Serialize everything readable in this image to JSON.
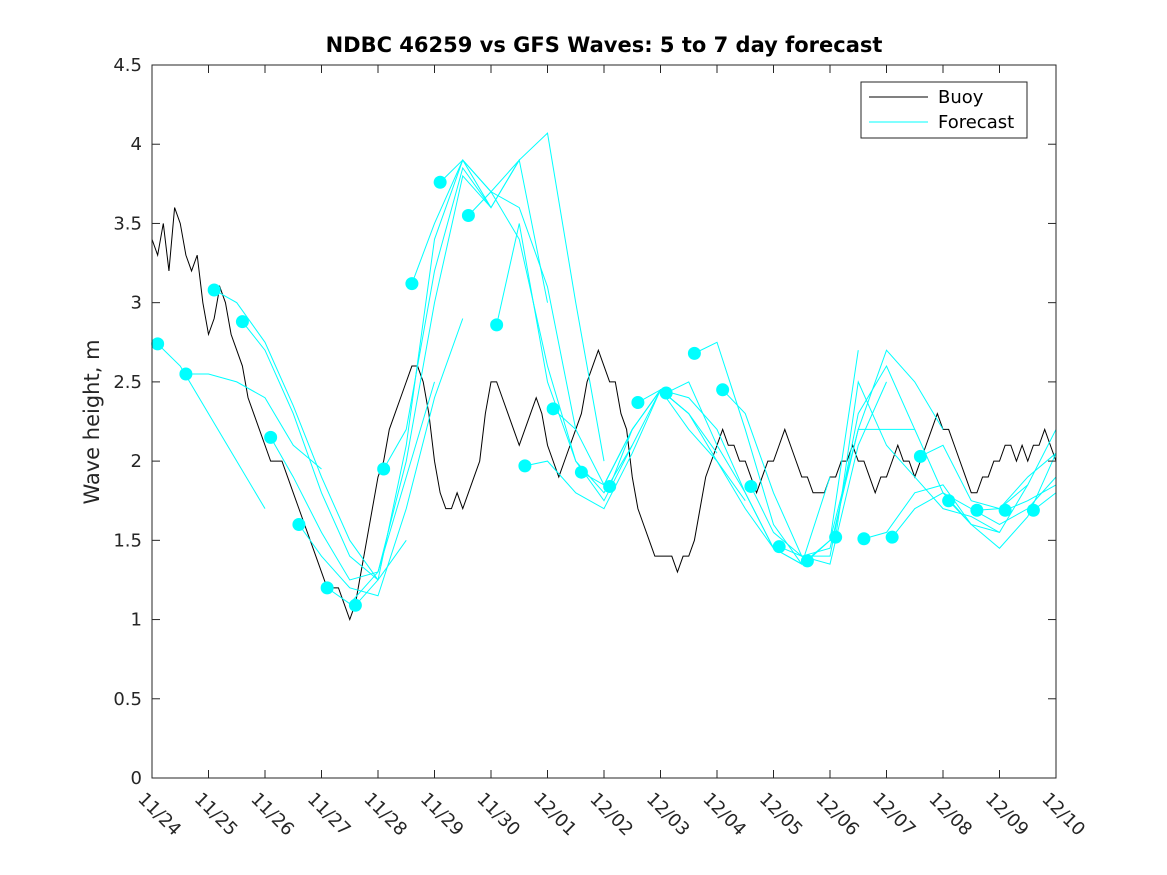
{
  "chart_data": {
    "type": "line",
    "title": "NDBC 46259 vs GFS Waves: 5 to 7 day forecast",
    "xlabel": "",
    "ylabel": "Wave height, m",
    "xlim": [
      0,
      16
    ],
    "ylim": [
      0,
      4.5
    ],
    "grid": false,
    "legend_position": "top-right",
    "x_ticks": [
      0,
      1,
      2,
      3,
      4,
      5,
      6,
      7,
      8,
      9,
      10,
      11,
      12,
      13,
      14,
      15,
      16
    ],
    "x_tick_labels": [
      "11/24",
      "11/25",
      "11/26",
      "11/27",
      "11/28",
      "11/29",
      "11/30",
      "12/01",
      "12/02",
      "12/03",
      "12/04",
      "12/05",
      "12/06",
      "12/07",
      "12/08",
      "12/09",
      "12/10"
    ],
    "y_ticks": [
      0,
      0.5,
      1,
      1.5,
      2,
      2.5,
      3,
      3.5,
      4,
      4.5
    ],
    "y_tick_labels": [
      "0",
      "0.5",
      "1",
      "1.5",
      "2",
      "2.5",
      "3",
      "3.5",
      "4",
      "4.5"
    ],
    "legend": [
      {
        "name": "Buoy",
        "color": "#000000"
      },
      {
        "name": "Forecast",
        "color": "#00FFFF"
      }
    ],
    "colors": {
      "buoy": "#000000",
      "forecast": "#00FFFF"
    },
    "series": [
      {
        "name": "Buoy",
        "x": [
          0,
          0.1,
          0.2,
          0.3,
          0.4,
          0.5,
          0.6,
          0.7,
          0.8,
          0.9,
          1.0,
          1.1,
          1.2,
          1.3,
          1.4,
          1.5,
          1.6,
          1.7,
          1.8,
          1.9,
          2.0,
          2.1,
          2.2,
          2.3,
          2.4,
          2.5,
          2.6,
          2.7,
          2.8,
          2.9,
          3.0,
          3.1,
          3.2,
          3.3,
          3.4,
          3.5,
          3.6,
          3.7,
          3.8,
          3.9,
          4.0,
          4.1,
          4.2,
          4.3,
          4.4,
          4.5,
          4.6,
          4.7,
          4.8,
          4.9,
          5.0,
          5.1,
          5.2,
          5.3,
          5.4,
          5.5,
          5.6,
          5.7,
          5.8,
          5.9,
          6.0,
          6.1,
          6.2,
          6.3,
          6.4,
          6.5,
          6.6,
          6.7,
          6.8,
          6.9,
          7.0,
          7.1,
          7.2,
          7.3,
          7.4,
          7.5,
          7.6,
          7.7,
          7.8,
          7.9,
          8.0,
          8.1,
          8.2,
          8.3,
          8.4,
          8.5,
          8.6,
          8.7,
          8.8,
          8.9,
          9.0,
          9.1,
          9.2,
          9.3,
          9.4,
          9.5,
          9.6,
          9.7,
          9.8,
          9.9,
          10.0,
          10.1,
          10.2,
          10.3,
          10.4,
          10.5,
          10.6,
          10.7,
          10.8,
          10.9,
          11.0,
          11.1,
          11.2,
          11.3,
          11.4,
          11.5,
          11.6,
          11.7,
          11.8,
          11.9,
          12.0,
          12.1,
          12.2,
          12.3,
          12.4,
          12.5,
          12.6,
          12.7,
          12.8,
          12.9,
          13.0,
          13.1,
          13.2,
          13.3,
          13.4,
          13.5,
          13.6,
          13.7,
          13.8,
          13.9,
          14.0,
          14.1,
          14.2,
          14.3,
          14.4,
          14.5,
          14.6,
          14.7,
          14.8,
          14.9,
          15.0,
          15.1,
          15.2,
          15.3,
          15.4,
          15.5,
          15.6,
          15.7,
          15.8,
          15.9,
          16.0
        ],
        "values": [
          3.4,
          3.3,
          3.5,
          3.2,
          3.6,
          3.5,
          3.3,
          3.2,
          3.3,
          3.0,
          2.8,
          2.9,
          3.1,
          3.0,
          2.8,
          2.7,
          2.6,
          2.4,
          2.3,
          2.2,
          2.1,
          2.0,
          2.0,
          2.0,
          1.9,
          1.8,
          1.7,
          1.6,
          1.5,
          1.4,
          1.3,
          1.2,
          1.2,
          1.2,
          1.1,
          1.0,
          1.1,
          1.3,
          1.5,
          1.7,
          1.9,
          2.0,
          2.2,
          2.3,
          2.4,
          2.5,
          2.6,
          2.6,
          2.5,
          2.3,
          2.0,
          1.8,
          1.7,
          1.7,
          1.8,
          1.7,
          1.8,
          1.9,
          2.0,
          2.3,
          2.5,
          2.5,
          2.4,
          2.3,
          2.2,
          2.1,
          2.2,
          2.3,
          2.4,
          2.3,
          2.1,
          2.0,
          1.9,
          2.0,
          2.1,
          2.2,
          2.3,
          2.5,
          2.6,
          2.7,
          2.6,
          2.5,
          2.5,
          2.3,
          2.2,
          1.9,
          1.7,
          1.6,
          1.5,
          1.4,
          1.4,
          1.4,
          1.4,
          1.3,
          1.4,
          1.4,
          1.5,
          1.7,
          1.9,
          2.0,
          2.1,
          2.2,
          2.1,
          2.1,
          2.0,
          2.0,
          1.9,
          1.8,
          1.9,
          2.0,
          2.0,
          2.1,
          2.2,
          2.1,
          2.0,
          1.9,
          1.9,
          1.8,
          1.8,
          1.8,
          1.9,
          1.9,
          2.0,
          2.0,
          2.1,
          2.0,
          2.0,
          1.9,
          1.8,
          1.9,
          1.9,
          2.0,
          2.1,
          2.0,
          2.0,
          1.9,
          2.0,
          2.1,
          2.2,
          2.3,
          2.2,
          2.2,
          2.1,
          2.0,
          1.9,
          1.8,
          1.8,
          1.9,
          1.9,
          2.0,
          2.0,
          2.1,
          2.1,
          2.0,
          2.1,
          2.0,
          2.1,
          2.1,
          2.2,
          2.1,
          2.0
        ]
      },
      {
        "name": "Forecast",
        "segments": [
          {
            "x": [
              0.1,
              0.5,
              1.0,
              1.5,
              2.0
            ],
            "values": [
              2.74,
              2.6,
              2.3,
              2.0,
              1.7
            ]
          },
          {
            "x": [
              0.6,
              1.0,
              1.5,
              2.0,
              2.5,
              3.0
            ],
            "values": [
              2.55,
              2.55,
              2.5,
              2.4,
              2.1,
              1.95
            ]
          },
          {
            "x": [
              1.1,
              1.5,
              2.0,
              2.5,
              3.0,
              3.5,
              4.0
            ],
            "values": [
              3.08,
              3.0,
              2.75,
              2.35,
              1.9,
              1.5,
              1.25
            ]
          },
          {
            "x": [
              1.6,
              2.0,
              2.5,
              3.0,
              3.5,
              4.0,
              4.5
            ],
            "values": [
              2.88,
              2.7,
              2.3,
              1.8,
              1.4,
              1.25,
              1.5
            ]
          },
          {
            "x": [
              2.1,
              2.5,
              3.0,
              3.5,
              4.0,
              4.5,
              5.0
            ],
            "values": [
              2.15,
              1.9,
              1.55,
              1.25,
              1.3,
              1.9,
              2.5
            ]
          },
          {
            "x": [
              2.6,
              3.0,
              3.5,
              4.0,
              4.5,
              5.0,
              5.5
            ],
            "values": [
              1.6,
              1.4,
              1.2,
              1.15,
              1.7,
              2.4,
              2.9
            ]
          },
          {
            "x": [
              3.1,
              3.5,
              4.0,
              4.5,
              5.0,
              5.5,
              6.0
            ],
            "values": [
              1.2,
              1.1,
              1.3,
              2.0,
              3.0,
              3.8,
              3.6
            ]
          },
          {
            "x": [
              3.6,
              4.0,
              4.5,
              5.0,
              5.5,
              6.0,
              6.5
            ],
            "values": [
              1.09,
              1.25,
              2.1,
              3.4,
              3.9,
              3.7,
              3.9
            ]
          },
          {
            "x": [
              4.1,
              4.5,
              5.0,
              5.5,
              6.0,
              6.5,
              7.0
            ],
            "values": [
              1.95,
              2.2,
              3.2,
              3.85,
              3.6,
              3.9,
              3.0
            ]
          },
          {
            "x": [
              4.6,
              5.0,
              5.5,
              6.0,
              6.5,
              7.0,
              7.5
            ],
            "values": [
              3.12,
              3.5,
              3.9,
              3.7,
              3.6,
              3.1,
              2.2
            ]
          },
          {
            "x": [
              5.1,
              5.5,
              6.0,
              6.5,
              7.0,
              7.5,
              8.0
            ],
            "values": [
              3.76,
              3.9,
              3.6,
              3.9,
              4.07,
              3.0,
              2.0
            ]
          },
          {
            "x": [
              5.6,
              6.0,
              6.5,
              7.0,
              7.5,
              8.0,
              8.5
            ],
            "values": [
              3.55,
              3.7,
              3.4,
              2.6,
              2.0,
              1.8,
              2.1
            ]
          },
          {
            "x": [
              6.1,
              6.5,
              7.0,
              7.5,
              8.0,
              8.5,
              9.0
            ],
            "values": [
              2.86,
              3.5,
              2.5,
              2.0,
              1.75,
              2.1,
              2.45
            ]
          },
          {
            "x": [
              6.6,
              7.0,
              7.5,
              8.0,
              8.5,
              9.0,
              9.5
            ],
            "values": [
              1.97,
              2.0,
              1.8,
              1.7,
              2.05,
              2.45,
              2.3
            ]
          },
          {
            "x": [
              7.1,
              7.5,
              8.0,
              8.5,
              9.0,
              9.5,
              10.0
            ],
            "values": [
              2.33,
              2.2,
              1.85,
              2.2,
              2.45,
              2.3,
              2.05
            ]
          },
          {
            "x": [
              7.6,
              8.0,
              8.5,
              9.0,
              9.5,
              10.0,
              10.5
            ],
            "values": [
              1.93,
              1.85,
              2.2,
              2.45,
              2.2,
              2.0,
              1.75
            ]
          },
          {
            "x": [
              8.1,
              8.5,
              9.0,
              9.5,
              10.0,
              10.5,
              11.0
            ],
            "values": [
              1.84,
              2.2,
              2.45,
              2.4,
              2.2,
              1.8,
              1.45
            ]
          },
          {
            "x": [
              8.6,
              9.0,
              9.5,
              10.0,
              10.5,
              11.0,
              11.5
            ],
            "values": [
              2.37,
              2.45,
              2.3,
              2.0,
              1.7,
              1.45,
              1.35
            ]
          },
          {
            "x": [
              9.1,
              9.5,
              10.0,
              10.5,
              11.0,
              11.5,
              12.0
            ],
            "values": [
              2.43,
              2.5,
              2.1,
              1.8,
              1.45,
              1.35,
              1.9
            ]
          },
          {
            "x": [
              9.6,
              10.0,
              10.5,
              11.0,
              11.5,
              12.0,
              12.5
            ],
            "values": [
              2.68,
              2.75,
              2.2,
              1.6,
              1.35,
              1.5,
              2.7
            ]
          },
          {
            "x": [
              10.1,
              10.5,
              11.0,
              11.5,
              12.0,
              12.5,
              13.0
            ],
            "values": [
              2.45,
              2.3,
              1.8,
              1.4,
              1.35,
              2.1,
              2.5
            ]
          },
          {
            "x": [
              10.6,
              11.0,
              11.5,
              12.0,
              12.5,
              13.0,
              13.5
            ],
            "values": [
              1.84,
              1.55,
              1.4,
              1.4,
              2.3,
              2.6,
              2.2
            ]
          },
          {
            "x": [
              11.1,
              11.5,
              12.0,
              12.5,
              13.0,
              13.5,
              14.0
            ],
            "values": [
              1.46,
              1.4,
              1.45,
              2.2,
              2.7,
              2.5,
              2.2
            ]
          },
          {
            "x": [
              11.6,
              12.0,
              12.5,
              13.0,
              13.5,
              14.0,
              14.5
            ],
            "values": [
              1.37,
              1.5,
              2.2,
              2.2,
              2.2,
              1.8,
              1.6
            ]
          },
          {
            "x": [
              12.1,
              12.5,
              13.0,
              13.5,
              14.0,
              14.5,
              15.0
            ],
            "values": [
              1.52,
              2.5,
              2.1,
              1.9,
              1.7,
              1.65,
              1.55
            ]
          },
          {
            "x": [
              12.6,
              13.0,
              13.5,
              14.0,
              14.5,
              15.0,
              15.5
            ],
            "values": [
              1.51,
              1.55,
              1.8,
              1.85,
              1.6,
              1.55,
              1.85
            ]
          },
          {
            "x": [
              13.1,
              13.5,
              14.0,
              14.5,
              15.0,
              15.5,
              16.0
            ],
            "values": [
              1.52,
              1.7,
              1.8,
              1.7,
              1.6,
              1.7,
              1.9
            ]
          },
          {
            "x": [
              13.6,
              14.0,
              14.5,
              15.0,
              15.5,
              16.0
            ],
            "values": [
              2.03,
              2.1,
              1.75,
              1.7,
              1.85,
              2.2
            ]
          },
          {
            "x": [
              14.1,
              14.5,
              15.0,
              15.5,
              16.0
            ],
            "values": [
              1.75,
              1.6,
              1.45,
              1.65,
              2.05
            ]
          },
          {
            "x": [
              14.6,
              15.0,
              15.5,
              16.0
            ],
            "values": [
              1.69,
              1.7,
              1.9,
              2.05
            ]
          },
          {
            "x": [
              15.1,
              15.5,
              16.0
            ],
            "values": [
              1.69,
              1.75,
              1.85
            ]
          },
          {
            "x": [
              15.6,
              16.0
            ],
            "values": [
              1.69,
              1.8
            ]
          }
        ],
        "markers": {
          "x": [
            0.1,
            0.6,
            1.1,
            1.6,
            2.1,
            2.6,
            3.1,
            3.6,
            4.1,
            4.6,
            5.1,
            5.6,
            6.1,
            6.6,
            7.1,
            7.6,
            8.1,
            8.6,
            9.1,
            9.6,
            10.1,
            10.6,
            11.1,
            11.6,
            12.1,
            12.6,
            13.1,
            13.6,
            14.1,
            14.6,
            15.1,
            15.6
          ],
          "values": [
            2.74,
            2.55,
            3.08,
            2.88,
            2.15,
            1.6,
            1.2,
            1.09,
            1.95,
            3.12,
            3.76,
            3.55,
            2.86,
            1.97,
            2.33,
            1.93,
            1.84,
            2.37,
            2.43,
            2.68,
            2.45,
            1.84,
            1.46,
            1.37,
            1.52,
            1.51,
            1.52,
            2.03,
            1.75,
            1.69,
            1.69,
            1.69
          ]
        }
      }
    ]
  }
}
